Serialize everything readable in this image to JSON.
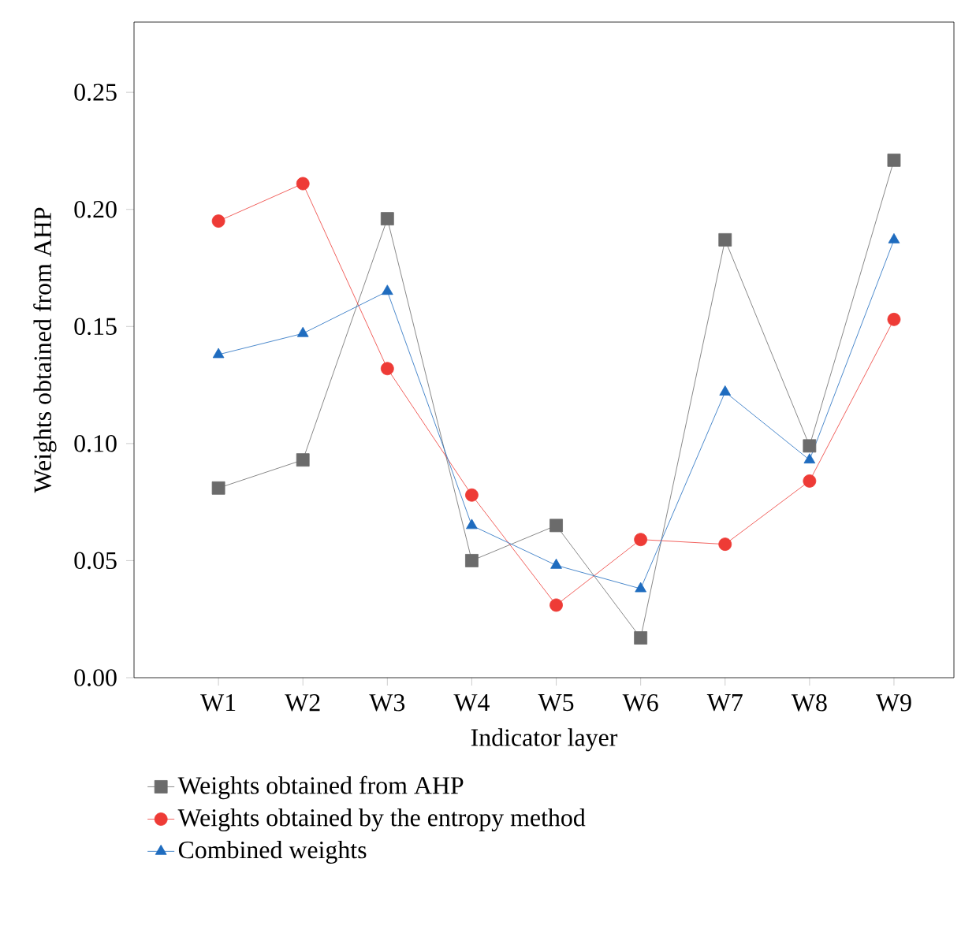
{
  "chart_data": {
    "type": "line",
    "xlabel": "Indicator layer",
    "ylabel": "Weights obtained from AHP",
    "categories": [
      "W1",
      "W2",
      "W3",
      "W4",
      "W5",
      "W6",
      "W7",
      "W8",
      "W9"
    ],
    "series": [
      {
        "name": "Weights obtained from AHP",
        "color": "#6b6b6b",
        "marker": "square",
        "values": [
          0.081,
          0.093,
          0.196,
          0.05,
          0.065,
          0.017,
          0.187,
          0.099,
          0.221
        ]
      },
      {
        "name": "Weights obtained by the entropy method",
        "color": "#ee3b36",
        "marker": "circle",
        "values": [
          0.195,
          0.211,
          0.132,
          0.078,
          0.031,
          0.059,
          0.057,
          0.084,
          0.153
        ]
      },
      {
        "name": "Combined weights",
        "color": "#1f6cbf",
        "marker": "triangle",
        "values": [
          0.138,
          0.147,
          0.165,
          0.065,
          0.048,
          0.038,
          0.122,
          0.093,
          0.187
        ]
      }
    ],
    "ylim": [
      0,
      0.28
    ],
    "yticks": [
      {
        "value": 0,
        "label": "0.00"
      },
      {
        "value": 0.05,
        "label": "0.05"
      },
      {
        "value": 0.1,
        "label": "0.10"
      },
      {
        "value": 0.15,
        "label": "0.15"
      },
      {
        "value": 0.2,
        "label": "0.20"
      },
      {
        "value": 0.25,
        "label": "0.25"
      }
    ],
    "legend": "bottom",
    "grid": false,
    "line_style": "solid"
  }
}
